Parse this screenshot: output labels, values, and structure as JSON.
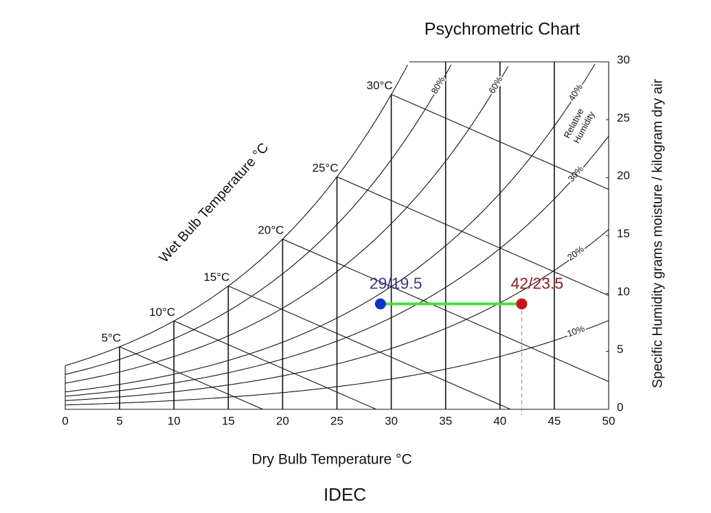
{
  "chart_data": {
    "type": "psychrometric",
    "title": "Psychrometric Chart",
    "x_label": "Dry Bulb Temperature °C",
    "y_label": "Specific Humidity grams moisture / kilogram dry air",
    "wet_bulb_label": "Wet Bulb Temperature °C",
    "rh_axis_label": [
      "Relative",
      "Humidity"
    ],
    "footer": "IDEC",
    "xlim": [
      0,
      50
    ],
    "ylim": [
      0,
      30
    ],
    "xticks": [
      0,
      5,
      10,
      15,
      20,
      25,
      30,
      35,
      40,
      45,
      50
    ],
    "yticks": [
      0,
      5,
      10,
      15,
      20,
      25,
      30
    ],
    "wet_bulb": [
      {
        "value": 5,
        "label": "5°C"
      },
      {
        "value": 10,
        "label": "10°C"
      },
      {
        "value": 15,
        "label": "15°C"
      },
      {
        "value": 20,
        "label": "20°C"
      },
      {
        "value": 25,
        "label": "25°C"
      },
      {
        "value": 30,
        "label": "30°C"
      }
    ],
    "relative_humidity": [
      {
        "value": 80,
        "label": "80%"
      },
      {
        "value": 60,
        "label": "60%"
      },
      {
        "value": 40,
        "label": "40%"
      },
      {
        "value": 30,
        "label": "30%"
      },
      {
        "value": 20,
        "label": "20%"
      },
      {
        "value": 10,
        "label": "10%"
      }
    ],
    "points": [
      {
        "x": 29,
        "y": 9.1,
        "label": "29/19.5",
        "color": "#1530c8",
        "label_color": "#3b3b86"
      },
      {
        "x": 42,
        "y": 9.1,
        "label": "42/23.5",
        "color": "#c81414",
        "label_color": "#8e1c1c"
      }
    ],
    "connector_color": "#44e03c"
  }
}
